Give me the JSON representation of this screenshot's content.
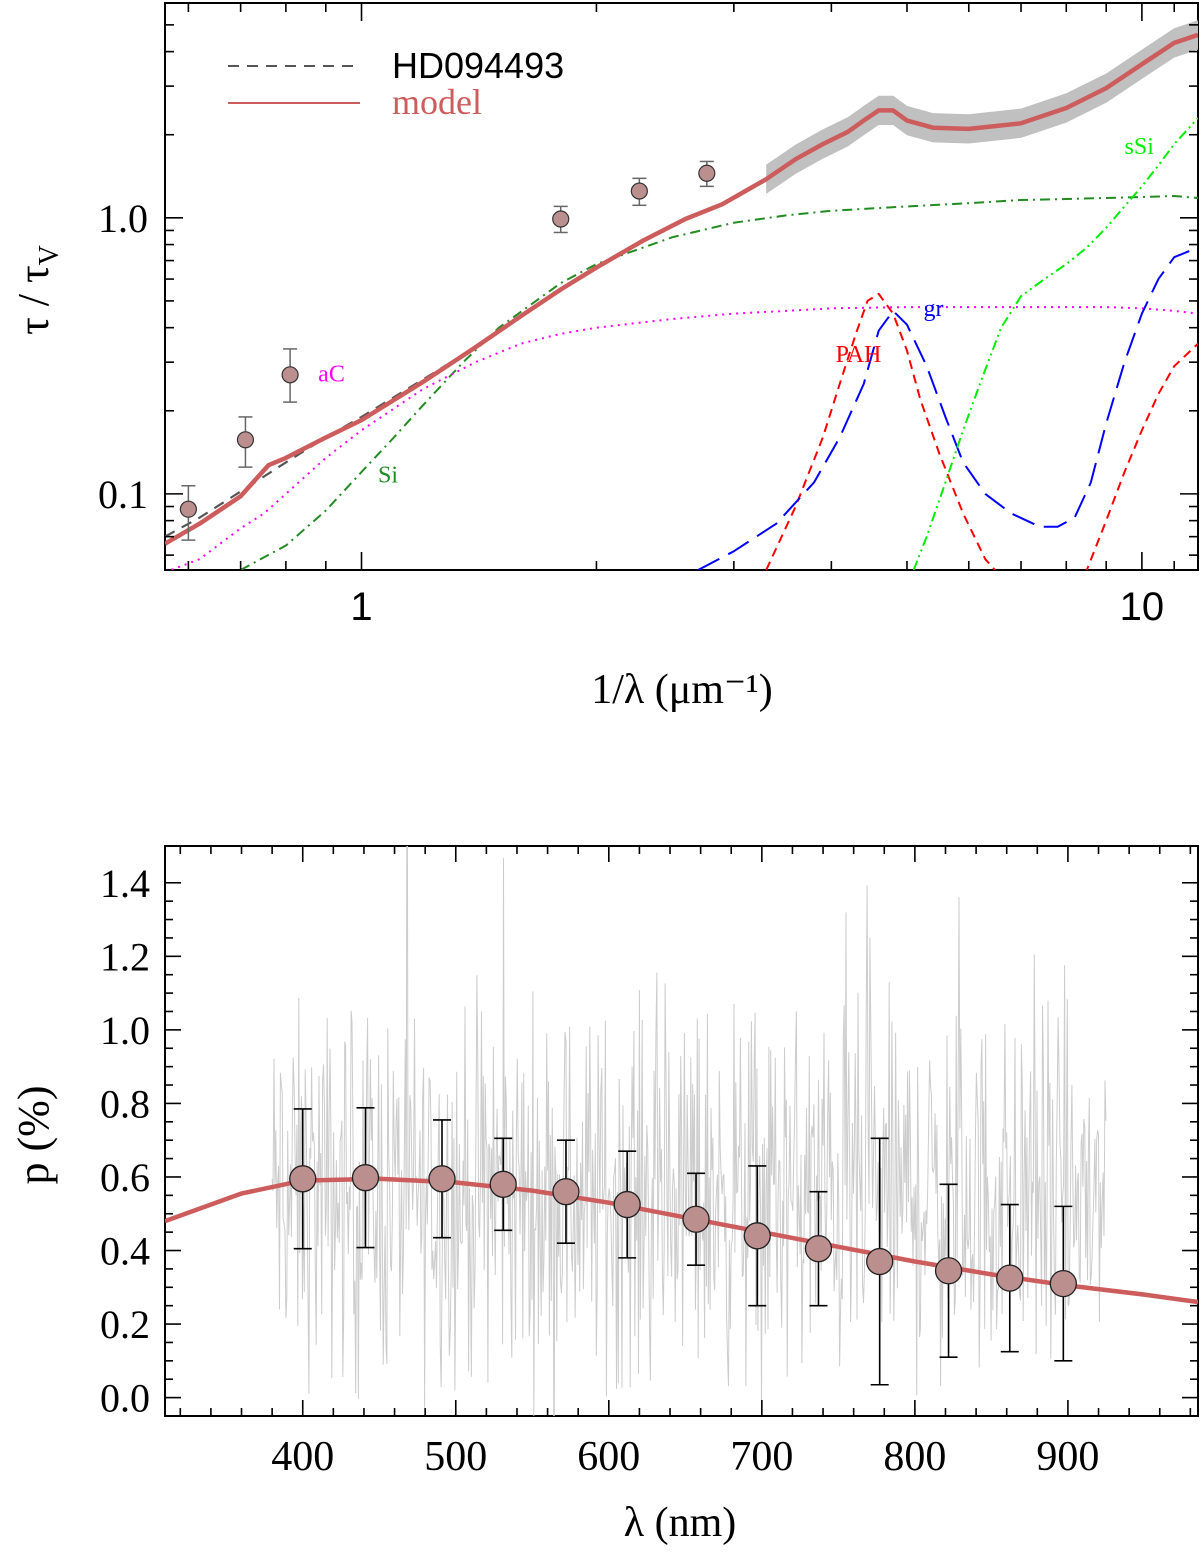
{
  "colors": {
    "model": "#cd5c5c",
    "observed": "#555555",
    "marker_fill": "#bc8f8f",
    "noise": "#cccccc",
    "band": "#c0c0c0",
    "Si": "#228b22",
    "aC": "#ff00ff",
    "PAH": "#ff0000",
    "gr": "#0000ff",
    "sSi": "#00ee00",
    "errorbar": "#000000"
  },
  "chart_data": [
    {
      "type": "line",
      "title": "",
      "xlabel": "1/λ (μm⁻¹)",
      "ylabel_main": "τ / τ",
      "ylabel_sub": "V",
      "xscale": "log",
      "yscale": "log",
      "xlim": [
        0.56,
        11.8
      ],
      "ylim": [
        0.053,
        6.0
      ],
      "xticks": [
        1,
        10
      ],
      "xtick_labels": [
        "1",
        "10"
      ],
      "yticks": [
        0.1,
        1.0
      ],
      "ytick_labels": [
        "0.1",
        "1.0"
      ],
      "legend": {
        "position": "top-left",
        "entries": [
          {
            "label": "HD094493",
            "style": "dashed",
            "series": "observed"
          },
          {
            "label": "model",
            "style": "solid",
            "series": "model"
          }
        ]
      },
      "series": [
        {
          "name": "observed",
          "style": "dashed",
          "x": [
            0.56,
            0.62,
            0.7,
            0.8,
            0.9,
            1.0,
            1.2,
            1.4,
            1.6,
            1.8,
            2.0,
            2.3,
            2.6,
            2.9,
            3.3,
            3.6,
            3.9,
            4.2,
            4.4,
            4.6,
            4.8,
            5.0,
            5.4,
            6.0,
            7.0,
            8.0,
            9.0,
            10.0,
            11.0,
            11.8
          ],
          "y": [
            0.07,
            0.082,
            0.102,
            0.13,
            0.16,
            0.19,
            0.26,
            0.34,
            0.44,
            0.55,
            0.66,
            0.83,
            0.99,
            1.12,
            1.38,
            1.63,
            1.85,
            2.05,
            2.25,
            2.45,
            2.45,
            2.25,
            2.12,
            2.1,
            2.2,
            2.5,
            2.95,
            3.6,
            4.3,
            4.6
          ]
        },
        {
          "name": "model",
          "style": "solid",
          "x": [
            0.56,
            0.62,
            0.7,
            0.73,
            0.76,
            0.8,
            0.9,
            1.0,
            1.2,
            1.4,
            1.6,
            1.8,
            2.0,
            2.3,
            2.6,
            2.9,
            3.3,
            3.6,
            3.9,
            4.2,
            4.4,
            4.6,
            4.8,
            5.0,
            5.4,
            6.0,
            7.0,
            8.0,
            9.0,
            10.0,
            11.0,
            11.8
          ],
          "y": [
            0.066,
            0.078,
            0.098,
            0.112,
            0.127,
            0.135,
            0.16,
            0.185,
            0.255,
            0.34,
            0.44,
            0.55,
            0.66,
            0.83,
            0.99,
            1.12,
            1.38,
            1.63,
            1.85,
            2.05,
            2.25,
            2.45,
            2.45,
            2.25,
            2.12,
            2.1,
            2.2,
            2.5,
            2.95,
            3.6,
            4.3,
            4.6
          ]
        },
        {
          "name": "Si",
          "style": "dashdot",
          "x": [
            0.7,
            0.8,
            0.9,
            1.0,
            1.1,
            1.2,
            1.35,
            1.5,
            1.8,
            2.0,
            2.5,
            3.0,
            3.5,
            4.0,
            5.0,
            6.0,
            7.0,
            8.0,
            9.0,
            10.0,
            11.0,
            11.8
          ],
          "y": [
            0.053,
            0.065,
            0.087,
            0.12,
            0.16,
            0.21,
            0.3,
            0.4,
            0.58,
            0.68,
            0.85,
            0.96,
            1.02,
            1.06,
            1.1,
            1.13,
            1.16,
            1.17,
            1.18,
            1.19,
            1.2,
            1.18
          ]
        },
        {
          "name": "aC",
          "style": "dotted",
          "x": [
            0.56,
            0.62,
            0.7,
            0.75,
            0.8,
            0.9,
            1.0,
            1.2,
            1.4,
            1.6,
            1.8,
            2.0,
            2.5,
            3.0,
            3.5,
            4.0,
            5.0,
            6.0,
            7.0,
            8.0,
            9.0,
            10.0,
            11.0,
            11.8
          ],
          "y": [
            0.052,
            0.058,
            0.075,
            0.085,
            0.1,
            0.135,
            0.17,
            0.24,
            0.3,
            0.35,
            0.38,
            0.4,
            0.43,
            0.45,
            0.46,
            0.47,
            0.475,
            0.475,
            0.475,
            0.475,
            0.475,
            0.47,
            0.46,
            0.45
          ]
        },
        {
          "name": "PAH",
          "style": "dashed-short",
          "x": [
            3.3,
            3.6,
            3.9,
            4.1,
            4.3,
            4.45,
            4.6,
            4.8,
            5.0,
            5.2,
            5.5,
            5.9,
            6.3,
            6.6,
            7.0,
            7.5,
            8.0,
            8.5,
            9.0,
            9.5,
            10.0,
            10.5,
            11.0,
            11.8
          ],
          "y": [
            0.053,
            0.09,
            0.16,
            0.25,
            0.38,
            0.5,
            0.53,
            0.45,
            0.33,
            0.22,
            0.14,
            0.085,
            0.058,
            0.05,
            0.045,
            0.043,
            0.046,
            0.053,
            0.08,
            0.12,
            0.17,
            0.23,
            0.29,
            0.35
          ]
        },
        {
          "name": "gr",
          "style": "dashed-long",
          "x": [
            2.7,
            3.0,
            3.4,
            3.8,
            4.1,
            4.4,
            4.6,
            4.8,
            5.0,
            5.3,
            5.6,
            5.9,
            6.3,
            6.8,
            7.4,
            7.8,
            8.2,
            8.6,
            9.0,
            9.5,
            10.0,
            10.5,
            11.0,
            11.8
          ],
          "y": [
            0.053,
            0.062,
            0.078,
            0.11,
            0.16,
            0.25,
            0.39,
            0.46,
            0.41,
            0.29,
            0.19,
            0.13,
            0.1,
            0.085,
            0.076,
            0.076,
            0.082,
            0.11,
            0.18,
            0.3,
            0.45,
            0.6,
            0.72,
            0.78
          ]
        },
        {
          "name": "sSi",
          "style": "dashdotdot",
          "x": [
            5.1,
            5.3,
            5.6,
            5.9,
            6.2,
            6.6,
            7.0,
            7.5,
            8.0,
            8.5,
            9.0,
            9.5,
            10.0,
            10.5,
            11.0,
            11.8
          ],
          "y": [
            0.053,
            0.07,
            0.11,
            0.17,
            0.25,
            0.4,
            0.52,
            0.6,
            0.68,
            0.78,
            0.92,
            1.1,
            1.3,
            1.55,
            1.85,
            2.3
          ]
        }
      ],
      "data_points": {
        "x": [
          0.6,
          0.71,
          0.81,
          1.8,
          2.27,
          2.77
        ],
        "y": [
          0.088,
          0.157,
          0.27,
          0.99,
          1.25,
          1.45
        ],
        "yerr_low": [
          0.068,
          0.125,
          0.215,
          0.885,
          1.11,
          1.3
        ],
        "yerr_high": [
          0.107,
          0.19,
          0.335,
          1.1,
          1.39,
          1.6
        ]
      },
      "uncertainty_band": {
        "x_range": [
          3.3,
          11.8
        ],
        "note": "grey band around observed curve"
      },
      "annotations": [
        {
          "text": "aC",
          "x": 0.88,
          "y": 0.255,
          "series": "aC"
        },
        {
          "text": "Si",
          "x": 1.05,
          "y": 0.11,
          "series": "Si"
        },
        {
          "text": "PAH",
          "x": 4.05,
          "y": 0.3,
          "series": "PAH"
        },
        {
          "text": "gr",
          "x": 5.25,
          "y": 0.44,
          "series": "gr"
        },
        {
          "text": "sSi",
          "x": 9.5,
          "y": 1.7,
          "series": "sSi"
        }
      ]
    },
    {
      "type": "line",
      "title": "",
      "xlabel": "λ   (nm)",
      "ylabel": "p (%)",
      "xlim": [
        310,
        985
      ],
      "ylim": [
        -0.05,
        1.5
      ],
      "xticks": [
        400,
        500,
        600,
        700,
        800,
        900
      ],
      "xtick_labels": [
        "400",
        "500",
        "600",
        "700",
        "800",
        "900"
      ],
      "yticks": [
        0.0,
        0.2,
        0.4,
        0.6,
        0.8,
        1.0,
        1.2,
        1.4
      ],
      "ytick_labels": [
        "0.0",
        "0.2",
        "0.4",
        "0.6",
        "0.8",
        "1.0",
        "1.2",
        "1.4"
      ],
      "noise_spectrum": {
        "x_range": [
          380,
          925
        ],
        "center": 0.55,
        "spread": 0.45
      },
      "series": [
        {
          "name": "model",
          "style": "solid",
          "x": [
            310,
            360,
            400,
            450,
            500,
            550,
            600,
            650,
            700,
            750,
            800,
            850,
            900,
            950,
            985
          ],
          "y": [
            0.48,
            0.555,
            0.59,
            0.595,
            0.585,
            0.563,
            0.53,
            0.49,
            0.45,
            0.41,
            0.37,
            0.335,
            0.305,
            0.28,
            0.26
          ]
        }
      ],
      "data_points": {
        "x": [
          400,
          441,
          491,
          531,
          572,
          612,
          657,
          697,
          737,
          777,
          822,
          862,
          897
        ],
        "y": [
          0.595,
          0.598,
          0.595,
          0.58,
          0.56,
          0.525,
          0.485,
          0.44,
          0.405,
          0.37,
          0.345,
          0.325,
          0.31
        ],
        "yerr": [
          0.19,
          0.19,
          0.16,
          0.125,
          0.14,
          0.145,
          0.125,
          0.19,
          0.155,
          0.335,
          0.235,
          0.2,
          0.21
        ]
      }
    }
  ]
}
